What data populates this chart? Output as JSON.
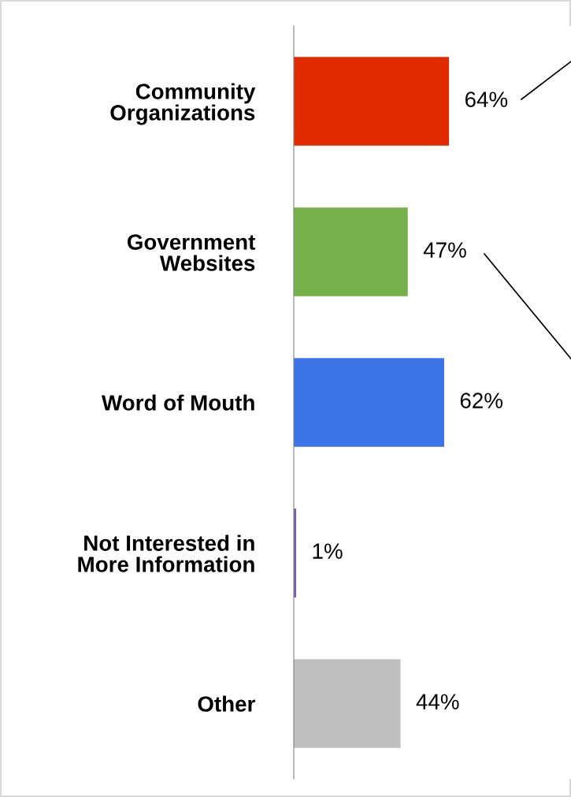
{
  "chart_data": {
    "type": "bar",
    "orientation": "horizontal",
    "categories": [
      "Community\nOrganizations",
      "Government\nWebsites",
      "Word of Mouth",
      "Not Interested in\nMore Information",
      "Other"
    ],
    "values": [
      64,
      47,
      62,
      1,
      44
    ],
    "colors": [
      "#e02b00",
      "#76b04b",
      "#3b74e6",
      "#7a5fa8",
      "#bfbfbf"
    ],
    "value_labels": [
      "64%",
      "47%",
      "62%",
      "1%",
      "44%"
    ],
    "grid": false,
    "legend": false
  }
}
